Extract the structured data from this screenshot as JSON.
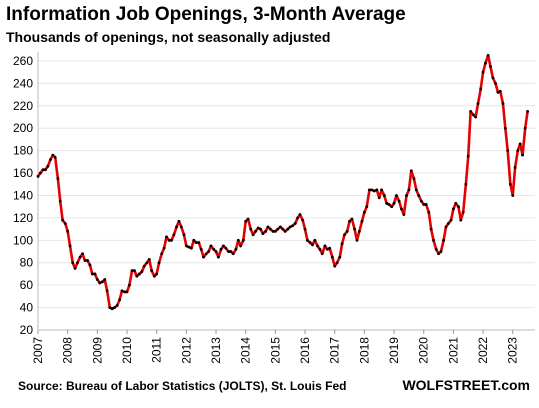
{
  "chart_data": {
    "type": "line",
    "title": "Information Job Openings, 3-Month Average",
    "subtitle": "Thousands of openings, not seasonally adjusted",
    "source": "Source: Bureau of Labor Statistics (JOLTS), St. Louis Fed",
    "credit": "WOLFSTREET.com",
    "x": [
      2007,
      2007.08,
      2007.17,
      2007.25,
      2007.33,
      2007.42,
      2007.5,
      2007.58,
      2007.67,
      2007.75,
      2007.83,
      2007.92,
      2008,
      2008.08,
      2008.17,
      2008.25,
      2008.33,
      2008.42,
      2008.5,
      2008.58,
      2008.67,
      2008.75,
      2008.83,
      2008.92,
      2009,
      2009.08,
      2009.17,
      2009.25,
      2009.33,
      2009.42,
      2009.5,
      2009.58,
      2009.67,
      2009.75,
      2009.83,
      2009.92,
      2010,
      2010.08,
      2010.17,
      2010.25,
      2010.33,
      2010.42,
      2010.5,
      2010.58,
      2010.67,
      2010.75,
      2010.83,
      2010.92,
      2011,
      2011.08,
      2011.17,
      2011.25,
      2011.33,
      2011.42,
      2011.5,
      2011.58,
      2011.67,
      2011.75,
      2011.83,
      2011.92,
      2012,
      2012.08,
      2012.17,
      2012.25,
      2012.33,
      2012.42,
      2012.5,
      2012.58,
      2012.67,
      2012.75,
      2012.83,
      2012.92,
      2013,
      2013.08,
      2013.17,
      2013.25,
      2013.33,
      2013.42,
      2013.5,
      2013.58,
      2013.67,
      2013.75,
      2013.83,
      2013.92,
      2014,
      2014.08,
      2014.17,
      2014.25,
      2014.33,
      2014.42,
      2014.5,
      2014.58,
      2014.67,
      2014.75,
      2014.83,
      2014.92,
      2015,
      2015.08,
      2015.17,
      2015.25,
      2015.33,
      2015.42,
      2015.5,
      2015.58,
      2015.67,
      2015.75,
      2015.83,
      2015.92,
      2016,
      2016.08,
      2016.17,
      2016.25,
      2016.33,
      2016.42,
      2016.5,
      2016.58,
      2016.67,
      2016.75,
      2016.83,
      2016.92,
      2017,
      2017.08,
      2017.17,
      2017.25,
      2017.33,
      2017.42,
      2017.5,
      2017.58,
      2017.67,
      2017.75,
      2017.83,
      2017.92,
      2018,
      2018.08,
      2018.17,
      2018.25,
      2018.33,
      2018.42,
      2018.5,
      2018.58,
      2018.67,
      2018.75,
      2018.83,
      2018.92,
      2019,
      2019.08,
      2019.17,
      2019.25,
      2019.33,
      2019.42,
      2019.5,
      2019.58,
      2019.67,
      2019.75,
      2019.83,
      2019.92,
      2020,
      2020.08,
      2020.17,
      2020.25,
      2020.33,
      2020.42,
      2020.5,
      2020.58,
      2020.67,
      2020.75,
      2020.83,
      2020.92,
      2021,
      2021.08,
      2021.17,
      2021.25,
      2021.33,
      2021.42,
      2021.5,
      2021.58,
      2021.67,
      2021.75,
      2021.83,
      2021.92,
      2022,
      2022.08,
      2022.17,
      2022.25,
      2022.33,
      2022.42,
      2022.5,
      2022.58,
      2022.67,
      2022.75,
      2022.83,
      2022.92,
      2023,
      2023.08,
      2023.17,
      2023.25,
      2023.33,
      2023.42,
      2023.5
    ],
    "series": [
      {
        "name": "Information job openings",
        "color": "#e60000",
        "marker_color": "#000000",
        "values": [
          157,
          160,
          163,
          163,
          166,
          172,
          176,
          174,
          155,
          135,
          118,
          115,
          108,
          95,
          80,
          75,
          80,
          85,
          88,
          82,
          82,
          78,
          70,
          70,
          65,
          62,
          63,
          65,
          55,
          40,
          39,
          40,
          42,
          47,
          55,
          54,
          54,
          60,
          73,
          73,
          68,
          70,
          72,
          77,
          80,
          83,
          73,
          68,
          70,
          80,
          88,
          93,
          103,
          100,
          100,
          105,
          112,
          117,
          112,
          105,
          95,
          94,
          93,
          100,
          98,
          98,
          92,
          85,
          88,
          90,
          95,
          92,
          90,
          85,
          92,
          95,
          93,
          90,
          90,
          88,
          92,
          100,
          95,
          100,
          117,
          119,
          110,
          105,
          108,
          111,
          110,
          106,
          108,
          112,
          110,
          108,
          108,
          110,
          112,
          110,
          108,
          110,
          112,
          113,
          115,
          120,
          123,
          118,
          110,
          100,
          98,
          96,
          100,
          95,
          92,
          88,
          95,
          92,
          93,
          85,
          77,
          80,
          85,
          97,
          105,
          108,
          117,
          119,
          110,
          100,
          108,
          117,
          125,
          130,
          145,
          145,
          144,
          145,
          138,
          145,
          140,
          133,
          132,
          130,
          133,
          140,
          135,
          128,
          123,
          140,
          145,
          162,
          155,
          145,
          140,
          135,
          132,
          132,
          125,
          110,
          100,
          92,
          88,
          90,
          100,
          112,
          115,
          118,
          128,
          133,
          130,
          118,
          125,
          150,
          175,
          215,
          212,
          210,
          222,
          235,
          250,
          258,
          265,
          255,
          245,
          240,
          232,
          233,
          222,
          200,
          180,
          150,
          140,
          165,
          180,
          186,
          176,
          200,
          215
        ]
      }
    ],
    "xlim": [
      2007,
      2023.75
    ],
    "xticks": [
      2007,
      2008,
      2009,
      2010,
      2011,
      2012,
      2013,
      2014,
      2015,
      2016,
      2017,
      2018,
      2019,
      2020,
      2021,
      2022,
      2023
    ],
    "ylim": [
      20,
      268
    ],
    "yticks": [
      20,
      40,
      60,
      80,
      100,
      120,
      140,
      160,
      180,
      200,
      220,
      240,
      260
    ],
    "grid": true
  }
}
